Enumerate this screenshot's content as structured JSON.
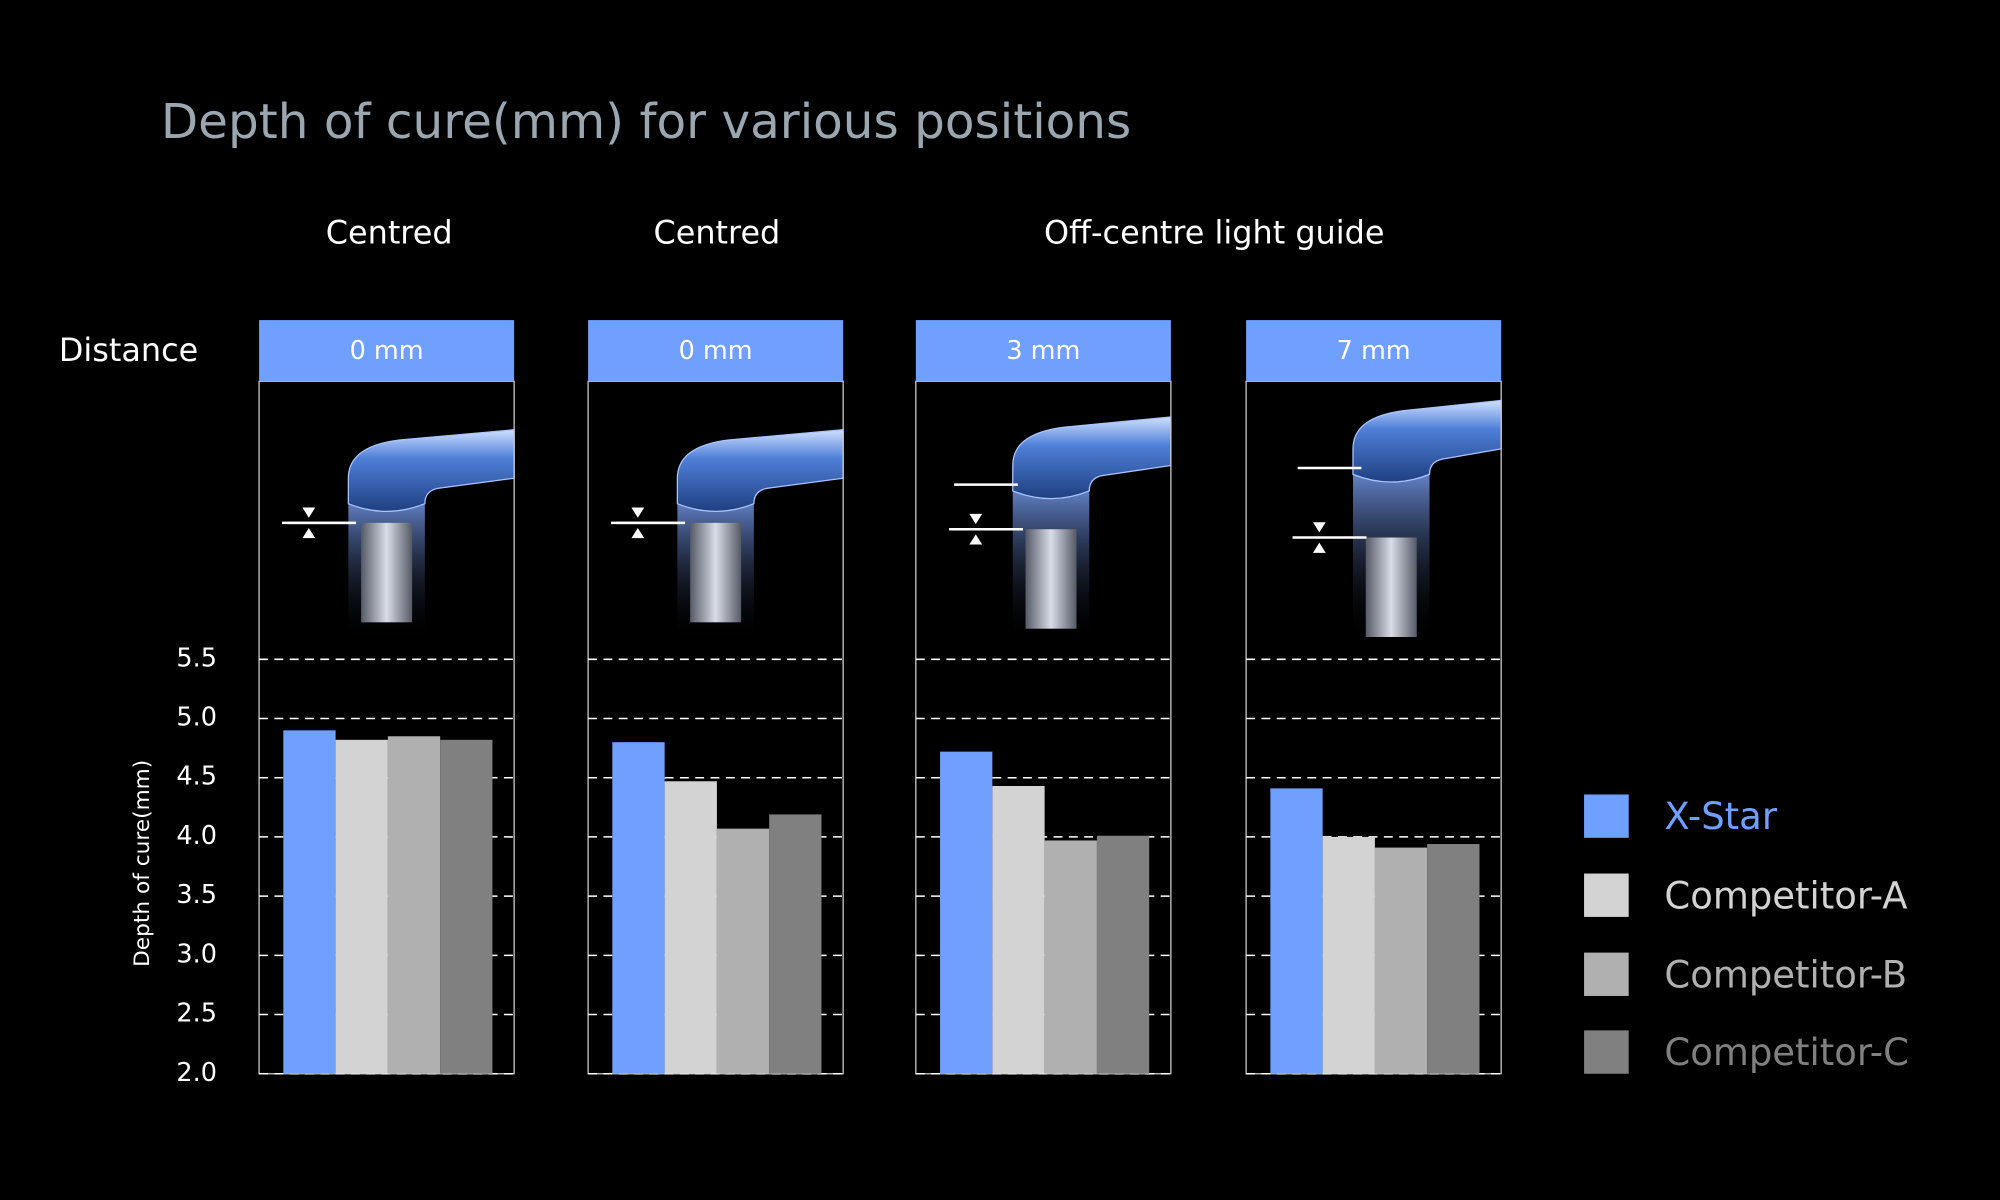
{
  "chart_data": {
    "type": "bar",
    "title": "Depth of cure(mm) for various positions",
    "annotations": [
      "Centred",
      "Centred",
      "Off-centre light guide"
    ],
    "category_label": "Distance",
    "y_label": "Depth of cure(mm)",
    "categories": [
      "0 mm",
      "0 mm",
      "3 mm",
      "7 mm"
    ],
    "series": [
      {
        "name": "X-Star",
        "color": "#70a0ff",
        "values": [
          4.9,
          4.8,
          4.72,
          4.41
        ]
      },
      {
        "name": "Competitor-A",
        "color": "#d3d3d3",
        "values": [
          4.82,
          4.47,
          4.43,
          4.0
        ]
      },
      {
        "name": "Competitor-B",
        "color": "#b0b0b0",
        "values": [
          4.85,
          4.07,
          3.97,
          3.91
        ]
      },
      {
        "name": "Competitor-C",
        "color": "#808080",
        "values": [
          4.82,
          4.19,
          4.01,
          3.94
        ]
      }
    ],
    "ylim": [
      2.0,
      5.5
    ],
    "yticks": [
      {
        "value": 2,
        "label": "2.0"
      },
      2.5,
      {
        "value": 3,
        "label": "3.0"
      },
      3.5,
      {
        "value": 4,
        "label": "4.0"
      },
      4.5,
      {
        "value": 5,
        "label": "5.0"
      },
      5.5
    ],
    "grid": true
  }
}
